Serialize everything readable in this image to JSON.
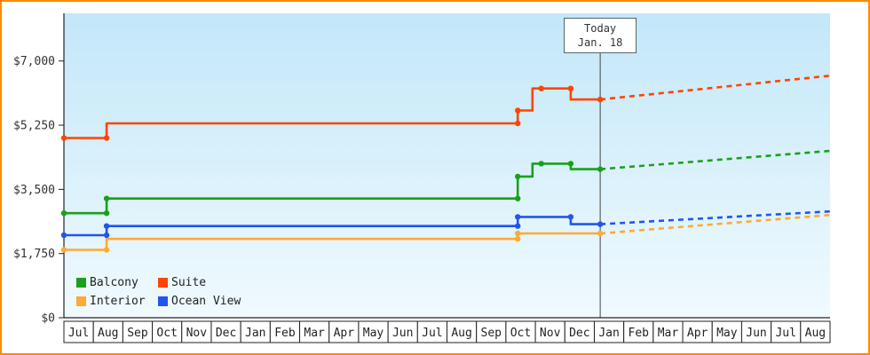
{
  "style": {
    "frame_border": "#ff8a00",
    "plot_bg_top": "#c3e7f9",
    "plot_bg_bottom": "#f0fafe",
    "axis_color": "#222222",
    "today_line_color": "#444444"
  },
  "chart_data": {
    "type": "line",
    "title": "",
    "x_range": [
      0,
      26
    ],
    "x_axis": {
      "months": [
        "Jul",
        "Aug",
        "Sep",
        "Oct",
        "Nov",
        "Dec",
        "Jan",
        "Feb",
        "Mar",
        "Apr",
        "May",
        "Jun",
        "Jul",
        "Aug",
        "Sep",
        "Oct",
        "Nov",
        "Dec",
        "Jan",
        "Feb",
        "Mar",
        "Apr",
        "May",
        "Jun",
        "Jul",
        "Aug"
      ]
    },
    "y_axis": {
      "max_value": 8300,
      "ticks": [
        {
          "label": "$7,000",
          "value": 7000
        },
        {
          "label": "$5,250",
          "value": 5250
        },
        {
          "label": "$3,500",
          "value": 3500
        },
        {
          "label": "$1,750",
          "value": 1750
        },
        {
          "label": "$0",
          "value": 0
        }
      ]
    },
    "today_marker": {
      "line1": "Today",
      "line2": "Jan. 18",
      "x": 18.2
    },
    "series": [
      {
        "name": "Interior",
        "color": "#ffaa33",
        "solid": [
          [
            0,
            1850
          ],
          [
            1.45,
            1850
          ],
          [
            1.45,
            2150
          ],
          [
            15.4,
            2150
          ],
          [
            15.4,
            2300
          ],
          [
            18.2,
            2300
          ]
        ],
        "dashed": [
          [
            18.2,
            2300
          ],
          [
            26,
            2800
          ]
        ],
        "markers": [
          [
            0,
            1850
          ],
          [
            1.45,
            1850
          ],
          [
            15.4,
            2150
          ],
          [
            15.4,
            2300
          ],
          [
            18.2,
            2300
          ]
        ]
      },
      {
        "name": "Ocean View",
        "color": "#2255ee",
        "solid": [
          [
            0,
            2250
          ],
          [
            1.45,
            2250
          ],
          [
            1.45,
            2500
          ],
          [
            15.4,
            2500
          ],
          [
            15.4,
            2750
          ],
          [
            17.2,
            2750
          ],
          [
            17.2,
            2550
          ],
          [
            18.2,
            2550
          ]
        ],
        "dashed": [
          [
            18.2,
            2550
          ],
          [
            26,
            2900
          ]
        ],
        "markers": [
          [
            0,
            2250
          ],
          [
            1.45,
            2250
          ],
          [
            1.45,
            2500
          ],
          [
            15.4,
            2500
          ],
          [
            15.4,
            2750
          ],
          [
            17.2,
            2750
          ],
          [
            18.2,
            2550
          ]
        ]
      },
      {
        "name": "Balcony",
        "color": "#1aa01a",
        "solid": [
          [
            0,
            2850
          ],
          [
            1.45,
            2850
          ],
          [
            1.45,
            3250
          ],
          [
            15.4,
            3250
          ],
          [
            15.4,
            3850
          ],
          [
            15.9,
            3850
          ],
          [
            15.9,
            4200
          ],
          [
            17.2,
            4200
          ],
          [
            17.2,
            4050
          ],
          [
            18.2,
            4050
          ]
        ],
        "dashed": [
          [
            18.2,
            4050
          ],
          [
            26,
            4550
          ]
        ],
        "markers": [
          [
            0,
            2850
          ],
          [
            1.45,
            2850
          ],
          [
            1.45,
            3250
          ],
          [
            15.4,
            3250
          ],
          [
            15.4,
            3850
          ],
          [
            16.2,
            4200
          ],
          [
            17.2,
            4200
          ],
          [
            18.2,
            4050
          ]
        ]
      },
      {
        "name": "Suite",
        "color": "#ff4500",
        "solid": [
          [
            0,
            4900
          ],
          [
            1.45,
            4900
          ],
          [
            1.45,
            5300
          ],
          [
            15.4,
            5300
          ],
          [
            15.4,
            5650
          ],
          [
            15.9,
            5650
          ],
          [
            15.9,
            6250
          ],
          [
            17.2,
            6250
          ],
          [
            17.2,
            5950
          ],
          [
            18.2,
            5950
          ]
        ],
        "dashed": [
          [
            18.2,
            5950
          ],
          [
            26,
            6600
          ]
        ],
        "markers": [
          [
            0,
            4900
          ],
          [
            1.45,
            4900
          ],
          [
            15.4,
            5300
          ],
          [
            15.4,
            5650
          ],
          [
            16.2,
            6250
          ],
          [
            17.2,
            6250
          ],
          [
            18.2,
            5950
          ]
        ]
      }
    ],
    "legend": {
      "items": [
        {
          "label": "Balcony",
          "color": "#1aa01a"
        },
        {
          "label": "Suite",
          "color": "#ff4500"
        },
        {
          "label": "Interior",
          "color": "#ffaa33"
        },
        {
          "label": "Ocean View",
          "color": "#2255ee"
        }
      ]
    }
  }
}
